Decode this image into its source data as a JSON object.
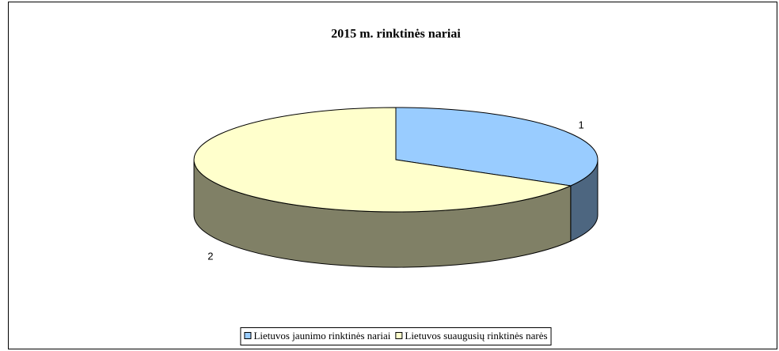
{
  "chart_data": {
    "type": "pie3d",
    "title": "2015 m. rinktinės nariai",
    "categories": [
      "Lietuvos jaunimo rinktinės nariai",
      "Lietuvos suaugusių rinktinės narės"
    ],
    "values": [
      1,
      2
    ],
    "colors": [
      "#99ccff",
      "#ffffcc"
    ],
    "legend": "bottom"
  }
}
